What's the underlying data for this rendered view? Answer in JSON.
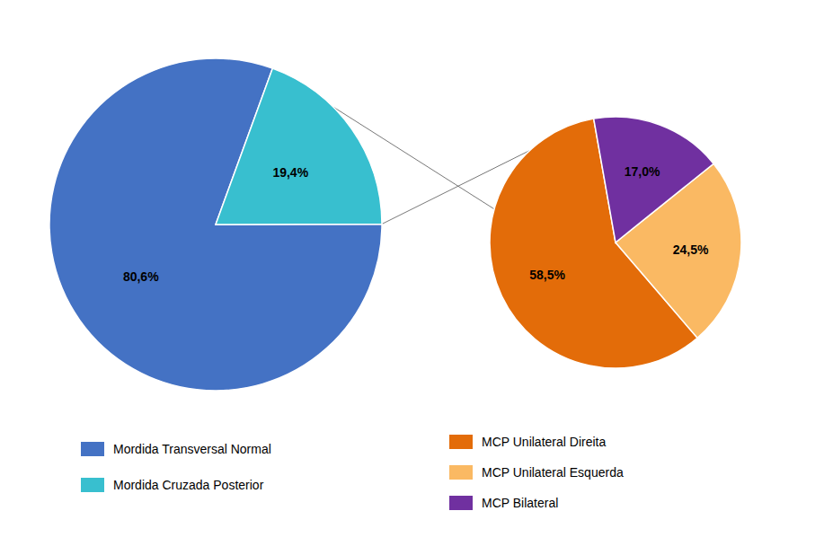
{
  "chart_data": [
    {
      "type": "pie",
      "categories": [
        "Mordida Transversal Normal",
        "Mordida Cruzada Posterior"
      ],
      "values": [
        80.6,
        19.4
      ],
      "value_labels": [
        "80,6%",
        "19,4%"
      ],
      "colors": [
        "#4472C4",
        "#38BFCF"
      ],
      "data_labels": true,
      "legend": "bottom"
    },
    {
      "type": "pie",
      "categories": [
        "MCP Unilateral Direita",
        "MCP Unilateral Esquerda",
        "MCP Bilateral"
      ],
      "values": [
        58.5,
        24.5,
        17.0
      ],
      "value_labels": [
        "58,5%",
        "24,5%",
        "17,0%"
      ],
      "colors": [
        "#E36C09",
        "#FAB963",
        "#7030A0"
      ],
      "data_labels": true,
      "legend": "bottom"
    }
  ]
}
